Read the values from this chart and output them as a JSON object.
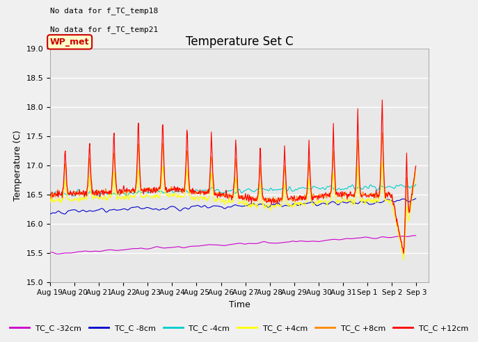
{
  "title": "Temperature Set C",
  "xlabel": "Time",
  "ylabel": "Temperature (C)",
  "ylim": [
    15.0,
    19.0
  ],
  "annotation_lines": [
    "No data for f_TC_temp18",
    "No data for f_TC_temp21"
  ],
  "wp_met_label": "WP_met",
  "wp_met_color": "#cc0000",
  "wp_met_bg": "#ffffcc",
  "legend_entries": [
    "TC_C -32cm",
    "TC_C -8cm",
    "TC_C -4cm",
    "TC_C +4cm",
    "TC_C +8cm",
    "TC_C +12cm"
  ],
  "line_colors": [
    "#cc00cc",
    "#0000cc",
    "#00cccc",
    "#ffff00",
    "#ff8800",
    "#ff0000"
  ],
  "background_color": "#e8e8e8",
  "grid_color": "#ffffff",
  "tick_dates": [
    "Aug 19",
    "Aug 20",
    "Aug 21",
    "Aug 22",
    "Aug 23",
    "Aug 24",
    "Aug 25",
    "Aug 26",
    "Aug 27",
    "Aug 28",
    "Aug 29",
    "Aug 30",
    "Aug 31",
    "Sep 1",
    "Sep 2",
    "Sep 3"
  ],
  "yticks": [
    15.0,
    15.5,
    16.0,
    16.5,
    17.0,
    17.5,
    18.0,
    18.5,
    19.0
  ]
}
